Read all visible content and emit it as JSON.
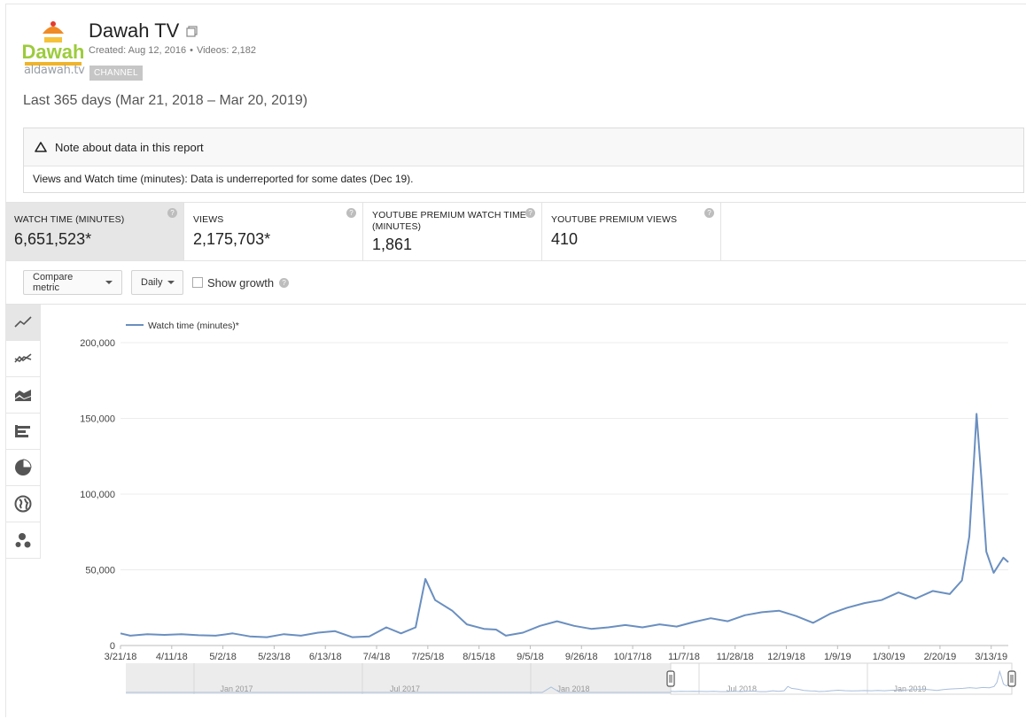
{
  "channel": {
    "title": "Dawah TV",
    "created": "Created: Aug 12, 2016",
    "videos": "Videos: 2,182",
    "badge": "CHANNEL",
    "logo_url_text": "aldawah.tv",
    "logo_text": "Dawah"
  },
  "range_label": "Last 365 days (Mar 21, 2018 – Mar 20, 2019)",
  "note": {
    "title": "Note about data in this report",
    "body": "Views and Watch time (minutes): Data is underreported for some dates (Dec 19)."
  },
  "metrics": [
    {
      "label": "WATCH TIME (MINUTES)",
      "value": "6,651,523*",
      "active": true
    },
    {
      "label": "VIEWS",
      "value": "2,175,703*",
      "active": false
    },
    {
      "label": "YOUTUBE PREMIUM WATCH TIME (MINUTES)",
      "value": "1,861",
      "active": false
    },
    {
      "label": "YOUTUBE PREMIUM VIEWS",
      "value": "410",
      "active": false
    }
  ],
  "controls": {
    "compare_metric": "Compare metric",
    "granularity": "Daily",
    "show_growth": "Show growth"
  },
  "side_tools": [
    {
      "name": "line-chart-icon",
      "active": true
    },
    {
      "name": "multi-line-chart-icon",
      "active": false
    },
    {
      "name": "stacked-area-chart-icon",
      "active": false
    },
    {
      "name": "bar-chart-icon",
      "active": false
    },
    {
      "name": "pie-chart-icon",
      "active": false
    },
    {
      "name": "globe-map-icon",
      "active": false
    },
    {
      "name": "bubble-chart-icon",
      "active": false
    }
  ],
  "colors": {
    "line": "#6a8fc0",
    "grid": "#ececec"
  },
  "chart_data": {
    "type": "line",
    "series": [
      {
        "name": "Watch time (minutes)*"
      }
    ],
    "ylim": [
      0,
      200000
    ],
    "yticks": [
      0,
      50000,
      100000,
      150000,
      200000
    ],
    "ytick_labels": [
      "0",
      "50,000",
      "100,000",
      "150,000",
      "200,000"
    ],
    "xlim": [
      "2018-03-21",
      "2019-03-20"
    ],
    "xticks": [
      "2018-03-21",
      "2018-04-11",
      "2018-05-02",
      "2018-05-23",
      "2018-06-13",
      "2018-07-04",
      "2018-07-25",
      "2018-08-15",
      "2018-09-05",
      "2018-09-26",
      "2018-10-17",
      "2018-11-07",
      "2018-11-28",
      "2018-12-19",
      "2019-01-09",
      "2019-01-30",
      "2019-02-20",
      "2019-03-13"
    ],
    "xtick_labels": [
      "3/21/18",
      "4/11/18",
      "5/2/18",
      "5/23/18",
      "6/13/18",
      "7/4/18",
      "7/25/18",
      "8/15/18",
      "9/5/18",
      "9/26/18",
      "10/17/18",
      "11/7/18",
      "11/28/18",
      "12/19/18",
      "1/9/19",
      "1/30/19",
      "2/20/19",
      "3/13/19"
    ],
    "points": [
      [
        "2018-03-21",
        8000
      ],
      [
        "2018-03-25",
        6500
      ],
      [
        "2018-04-01",
        7500
      ],
      [
        "2018-04-08",
        7000
      ],
      [
        "2018-04-15",
        7500
      ],
      [
        "2018-04-22",
        6800
      ],
      [
        "2018-04-29",
        6500
      ],
      [
        "2018-05-06",
        8000
      ],
      [
        "2018-05-13",
        6000
      ],
      [
        "2018-05-20",
        5500
      ],
      [
        "2018-05-27",
        7500
      ],
      [
        "2018-06-03",
        6500
      ],
      [
        "2018-06-10",
        8500
      ],
      [
        "2018-06-17",
        9500
      ],
      [
        "2018-06-24",
        5500
      ],
      [
        "2018-07-01",
        6000
      ],
      [
        "2018-07-08",
        12000
      ],
      [
        "2018-07-14",
        8000
      ],
      [
        "2018-07-20",
        12000
      ],
      [
        "2018-07-24",
        44000
      ],
      [
        "2018-07-28",
        30000
      ],
      [
        "2018-08-04",
        23000
      ],
      [
        "2018-08-10",
        14000
      ],
      [
        "2018-08-17",
        11000
      ],
      [
        "2018-08-22",
        10500
      ],
      [
        "2018-08-26",
        6500
      ],
      [
        "2018-09-02",
        8500
      ],
      [
        "2018-09-09",
        13000
      ],
      [
        "2018-09-16",
        16000
      ],
      [
        "2018-09-23",
        13000
      ],
      [
        "2018-09-30",
        11000
      ],
      [
        "2018-10-07",
        12000
      ],
      [
        "2018-10-14",
        13500
      ],
      [
        "2018-10-21",
        12000
      ],
      [
        "2018-10-28",
        14000
      ],
      [
        "2018-11-04",
        12500
      ],
      [
        "2018-11-11",
        15500
      ],
      [
        "2018-11-18",
        18000
      ],
      [
        "2018-11-25",
        16000
      ],
      [
        "2018-12-02",
        20000
      ],
      [
        "2018-12-09",
        22000
      ],
      [
        "2018-12-16",
        23000
      ],
      [
        "2018-12-23",
        19500
      ],
      [
        "2018-12-30",
        15000
      ],
      [
        "2019-01-06",
        21000
      ],
      [
        "2019-01-13",
        25000
      ],
      [
        "2019-01-20",
        28000
      ],
      [
        "2019-01-27",
        30000
      ],
      [
        "2019-02-03",
        35000
      ],
      [
        "2019-02-10",
        31000
      ],
      [
        "2019-02-17",
        36000
      ],
      [
        "2019-02-24",
        34000
      ],
      [
        "2019-03-01",
        43000
      ],
      [
        "2019-03-04",
        72000
      ],
      [
        "2019-03-06",
        125000
      ],
      [
        "2019-03-07",
        153000
      ],
      [
        "2019-03-09",
        110000
      ],
      [
        "2019-03-11",
        62000
      ],
      [
        "2019-03-14",
        48000
      ],
      [
        "2019-03-18",
        58000
      ],
      [
        "2019-03-20",
        55000
      ]
    ],
    "navigator": {
      "labels": [
        "Jan 2017",
        "Jul 2017",
        "Jan 2018",
        "Jul 2018",
        "Jan 2019"
      ]
    }
  }
}
